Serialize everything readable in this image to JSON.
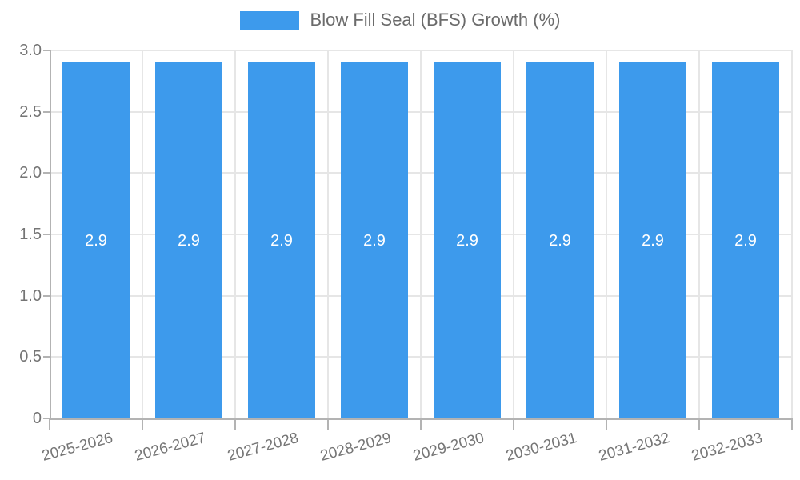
{
  "chart_data": {
    "type": "bar",
    "title": "",
    "legend": {
      "position": "top",
      "label": "Blow Fill Seal (BFS) Growth (%)"
    },
    "categories": [
      "2025-2026",
      "2026-2027",
      "2027-2028",
      "2028-2029",
      "2029-2030",
      "2030-2031",
      "2031-2032",
      "2032-2033"
    ],
    "series": [
      {
        "name": "Blow Fill Seal (BFS) Growth (%)",
        "values": [
          2.9,
          2.9,
          2.9,
          2.9,
          2.9,
          2.9,
          2.9,
          2.9
        ]
      }
    ],
    "bar_labels": [
      "2.9",
      "2.9",
      "2.9",
      "2.9",
      "2.9",
      "2.9",
      "2.9",
      "2.9"
    ],
    "xlabel": "",
    "ylabel": "",
    "ylim": [
      0,
      3
    ],
    "ytick_values": [
      0,
      0.5,
      1.0,
      1.5,
      2.0,
      2.5,
      3.0
    ],
    "ytick_labels": [
      "0",
      "0.5",
      "1.0",
      "1.5",
      "2.0",
      "2.5",
      "3.0"
    ],
    "grid": true,
    "colors": {
      "bar": "#3d9aec",
      "bar_value_text": "#ffffff",
      "axis_text": "#757575",
      "legend_text": "#6b6b6b",
      "gridline": "#e6e6e6",
      "axis_line": "#b3b3b3",
      "background": "#ffffff"
    }
  }
}
